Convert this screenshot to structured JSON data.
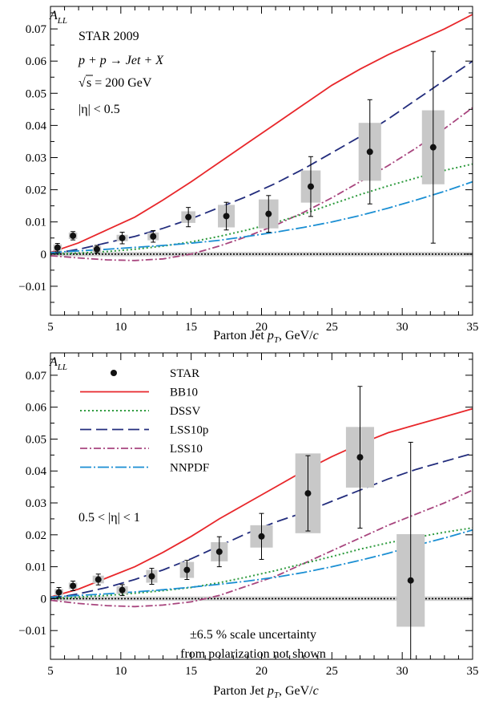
{
  "colors": {
    "BB10": "#e8272b",
    "DSSV": "#2e9b3e",
    "LSS10p": "#232d7d",
    "LSS10": "#a8457e",
    "NNPDF": "#1b8fd3",
    "data": "#111111",
    "syst": "#c8c8c8"
  },
  "chart_data": [
    {
      "type": "scatter",
      "ylabel": "A_LL",
      "xlabel": "Parton Jet p_T, GeV/c",
      "xlim": [
        5,
        35
      ],
      "ylim": [
        -0.019,
        0.077
      ],
      "x_ticks": [
        5,
        10,
        15,
        20,
        25,
        30,
        35
      ],
      "y_ticks": [
        -0.01,
        0,
        0.01,
        0.02,
        0.03,
        0.04,
        0.05,
        0.06,
        0.07
      ],
      "y_tick_labels": [
        "−0.01",
        "0",
        "0.01",
        "0.02",
        "0.03",
        "0.04",
        "0.05",
        "0.06",
        "0.07"
      ],
      "annotations": {
        "experiment": "STAR 2009",
        "process": "p + p → Jet + X",
        "energy_sqrt": "√",
        "energy": "s = 200 GeV",
        "eta_cut": "|η| < 0.5"
      },
      "points": [
        {
          "x": 5.5,
          "y": 0.002,
          "err": 0.0013,
          "syst_w": 0.6,
          "syst_h": 0.001
        },
        {
          "x": 6.6,
          "y": 0.0057,
          "err": 0.0013,
          "syst_w": 0.6,
          "syst_h": 0.001
        },
        {
          "x": 8.3,
          "y": 0.0015,
          "err": 0.0012,
          "syst_w": 0.6,
          "syst_h": 0.001
        },
        {
          "x": 10.1,
          "y": 0.005,
          "err": 0.0018,
          "syst_w": 0.8,
          "syst_h": 0.001
        },
        {
          "x": 12.3,
          "y": 0.0055,
          "err": 0.0018,
          "syst_w": 0.8,
          "syst_h": 0.0012
        },
        {
          "x": 14.8,
          "y": 0.0115,
          "err": 0.003,
          "syst_w": 1.0,
          "syst_h": 0.0018
        },
        {
          "x": 17.5,
          "y": 0.0118,
          "err": 0.0043,
          "syst_w": 1.2,
          "syst_h": 0.0035
        },
        {
          "x": 20.5,
          "y": 0.0125,
          "err": 0.0057,
          "syst_w": 1.4,
          "syst_h": 0.0045
        },
        {
          "x": 23.5,
          "y": 0.021,
          "err": 0.0093,
          "syst_w": 1.4,
          "syst_h": 0.005
        },
        {
          "x": 27.7,
          "y": 0.0318,
          "err": 0.0162,
          "syst_w": 1.6,
          "syst_h": 0.009
        },
        {
          "x": 32.2,
          "y": 0.0332,
          "err": 0.0298,
          "syst_w": 1.6,
          "syst_h": 0.0115
        }
      ],
      "curves": [
        {
          "name": "BB10",
          "x": [
            5,
            7,
            9,
            11,
            13,
            15,
            17,
            19,
            21,
            23,
            25,
            27,
            29,
            31,
            33,
            35
          ],
          "y": [
            0.0005,
            0.0035,
            0.0075,
            0.0115,
            0.0168,
            0.0225,
            0.0285,
            0.0345,
            0.0405,
            0.0465,
            0.0525,
            0.0575,
            0.062,
            0.066,
            0.07,
            0.0745
          ]
        },
        {
          "name": "LSS10p",
          "x": [
            5,
            7,
            9,
            11,
            13,
            15,
            17,
            19,
            21,
            23,
            25,
            27,
            29,
            31,
            33,
            35
          ],
          "y": [
            0.0,
            0.0015,
            0.0035,
            0.0055,
            0.008,
            0.011,
            0.0145,
            0.018,
            0.022,
            0.0265,
            0.0315,
            0.0365,
            0.042,
            0.048,
            0.054,
            0.06
          ]
        },
        {
          "name": "LSS10",
          "x": [
            5,
            7,
            9,
            11,
            13,
            15,
            17,
            19,
            21,
            23,
            25,
            27,
            29,
            31,
            33,
            35
          ],
          "y": [
            -0.0005,
            -0.0012,
            -0.0018,
            -0.002,
            -0.0015,
            0.0,
            0.0025,
            0.0055,
            0.009,
            0.013,
            0.0175,
            0.0225,
            0.0275,
            0.033,
            0.039,
            0.0455
          ]
        },
        {
          "name": "DSSV",
          "x": [
            5,
            7,
            9,
            11,
            13,
            15,
            17,
            19,
            21,
            23,
            25,
            27,
            29,
            31,
            33,
            35
          ],
          "y": [
            0.0,
            0.0003,
            0.0008,
            0.0015,
            0.0025,
            0.0038,
            0.0055,
            0.0075,
            0.0098,
            0.0125,
            0.0155,
            0.0185,
            0.0212,
            0.0237,
            0.026,
            0.028
          ]
        },
        {
          "name": "NNPDF",
          "x": [
            5,
            7,
            9,
            11,
            13,
            15,
            17,
            19,
            21,
            23,
            25,
            27,
            29,
            31,
            33,
            35
          ],
          "y": [
            0.0005,
            0.001,
            0.0015,
            0.0021,
            0.0027,
            0.0034,
            0.0043,
            0.0055,
            0.0068,
            0.0083,
            0.01,
            0.012,
            0.0143,
            0.0168,
            0.0195,
            0.0225
          ]
        }
      ]
    },
    {
      "type": "scatter",
      "ylabel": "A_LL",
      "xlabel": "Parton Jet p_T, GeV/c",
      "xlim": [
        5,
        35
      ],
      "ylim": [
        -0.019,
        0.077
      ],
      "x_ticks": [
        5,
        10,
        15,
        20,
        25,
        30,
        35
      ],
      "y_ticks": [
        -0.01,
        0,
        0.01,
        0.02,
        0.03,
        0.04,
        0.05,
        0.06,
        0.07
      ],
      "y_tick_labels": [
        "−0.01",
        "0",
        "0.01",
        "0.02",
        "0.03",
        "0.04",
        "0.05",
        "0.06",
        "0.07"
      ],
      "annotations": {
        "eta_cut": "0.5 < |η| < 1",
        "scale_note_1": "±6.5 % scale uncertainty",
        "scale_note_2": "from polarization not shown"
      },
      "legend": [
        {
          "name": "STAR",
          "style": "point"
        },
        {
          "name": "BB10",
          "style": "solid"
        },
        {
          "name": "DSSV",
          "style": "dotted"
        },
        {
          "name": "LSS10p",
          "style": "dashed"
        },
        {
          "name": "LSS10",
          "style": "dashdot"
        },
        {
          "name": "NNPDF",
          "style": "longdashdot"
        }
      ],
      "points": [
        {
          "x": 5.6,
          "y": 0.002,
          "err": 0.0015,
          "syst_w": 0.6,
          "syst_h": 0.001
        },
        {
          "x": 6.6,
          "y": 0.004,
          "err": 0.0015,
          "syst_w": 0.6,
          "syst_h": 0.001
        },
        {
          "x": 8.4,
          "y": 0.006,
          "err": 0.0017,
          "syst_w": 0.8,
          "syst_h": 0.0012
        },
        {
          "x": 10.1,
          "y": 0.0027,
          "err": 0.0017,
          "syst_w": 0.8,
          "syst_h": 0.0012
        },
        {
          "x": 12.2,
          "y": 0.007,
          "err": 0.0025,
          "syst_w": 0.8,
          "syst_h": 0.002
        },
        {
          "x": 14.7,
          "y": 0.009,
          "err": 0.003,
          "syst_w": 1.0,
          "syst_h": 0.0025
        },
        {
          "x": 17.0,
          "y": 0.0147,
          "err": 0.0047,
          "syst_w": 1.2,
          "syst_h": 0.003
        },
        {
          "x": 20.0,
          "y": 0.0195,
          "err": 0.0072,
          "syst_w": 1.6,
          "syst_h": 0.0035
        },
        {
          "x": 23.3,
          "y": 0.033,
          "err": 0.0118,
          "syst_w": 1.8,
          "syst_h": 0.0125
        },
        {
          "x": 27.0,
          "y": 0.0443,
          "err": 0.0222,
          "syst_w": 2.0,
          "syst_h": 0.0095
        },
        {
          "x": 30.6,
          "y": 0.0057,
          "err": 0.0433,
          "syst_w": 2.0,
          "syst_h": 0.0145
        }
      ],
      "curves": [
        {
          "name": "BB10",
          "x": [
            5,
            7,
            9,
            11,
            13,
            15,
            17,
            19,
            21,
            23,
            25,
            27,
            29,
            31,
            33,
            35
          ],
          "y": [
            0.0005,
            0.003,
            0.0065,
            0.01,
            0.0145,
            0.0195,
            0.025,
            0.03,
            0.035,
            0.04,
            0.0445,
            0.0485,
            0.052,
            0.0545,
            0.057,
            0.0595
          ]
        },
        {
          "name": "LSS10p",
          "x": [
            5,
            7,
            9,
            11,
            13,
            15,
            17,
            19,
            21,
            23,
            25,
            27,
            29,
            31,
            33,
            35
          ],
          "y": [
            0.0,
            0.0015,
            0.0035,
            0.006,
            0.009,
            0.0125,
            0.0165,
            0.0205,
            0.024,
            0.027,
            0.0305,
            0.034,
            0.0375,
            0.0405,
            0.043,
            0.0455
          ]
        },
        {
          "name": "LSS10",
          "x": [
            5,
            7,
            9,
            11,
            13,
            15,
            17,
            19,
            21,
            23,
            25,
            27,
            29,
            31,
            33,
            35
          ],
          "y": [
            -0.0005,
            -0.0015,
            -0.0022,
            -0.0025,
            -0.002,
            -0.001,
            0.001,
            0.004,
            0.007,
            0.011,
            0.015,
            0.019,
            0.023,
            0.0265,
            0.03,
            0.034
          ]
        },
        {
          "name": "DSSV",
          "x": [
            5,
            7,
            9,
            11,
            13,
            15,
            17,
            19,
            21,
            23,
            25,
            27,
            29,
            31,
            33,
            35
          ],
          "y": [
            0.0,
            0.0005,
            0.001,
            0.0017,
            0.0025,
            0.0035,
            0.005,
            0.0068,
            0.0088,
            0.011,
            0.0132,
            0.0155,
            0.0175,
            0.0192,
            0.0208,
            0.0222
          ]
        },
        {
          "name": "NNPDF",
          "x": [
            5,
            7,
            9,
            11,
            13,
            15,
            17,
            19,
            21,
            23,
            25,
            27,
            29,
            31,
            33,
            35
          ],
          "y": [
            0.0005,
            0.001,
            0.0015,
            0.0021,
            0.0028,
            0.0036,
            0.0045,
            0.0055,
            0.0067,
            0.0082,
            0.01,
            0.012,
            0.0142,
            0.0167,
            0.019,
            0.0215
          ]
        }
      ]
    }
  ]
}
